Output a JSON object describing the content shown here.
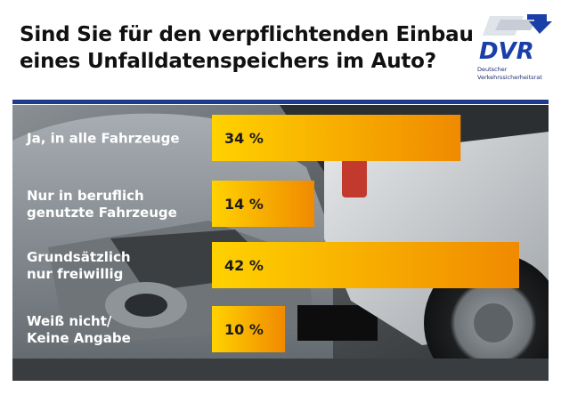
{
  "header": {
    "title_line1": "Sind Sie für den verpflichtenden Einbau",
    "title_line2": "eines Unfalldatenspeichers im Auto?"
  },
  "logo": {
    "text": "DVR",
    "caption_line1": "Deutscher",
    "caption_line2": "Verkehrssicherheitsrat"
  },
  "colors": {
    "rule": "#1c3b8c",
    "bar_start": "#ffd200",
    "bar_end": "#f08a00",
    "title": "#111111"
  },
  "chart_data": {
    "type": "bar",
    "orientation": "horizontal",
    "title": "Sind Sie für den verpflichtenden Einbau eines Unfalldatenspeichers im Auto?",
    "unit": "%",
    "xlim": [
      0,
      45
    ],
    "categories": [
      [
        "Ja, in alle Fahrzeuge"
      ],
      [
        "Nur in beruflich",
        "genutzte Fahrzeuge"
      ],
      [
        "Grundsätzlich",
        "nur freiwillig"
      ],
      [
        "Weiß nicht/",
        "Keine Angabe"
      ]
    ],
    "values": [
      34,
      14,
      42,
      10
    ],
    "value_labels": [
      "34 %",
      "14 %",
      "42 %",
      "10 %"
    ]
  }
}
